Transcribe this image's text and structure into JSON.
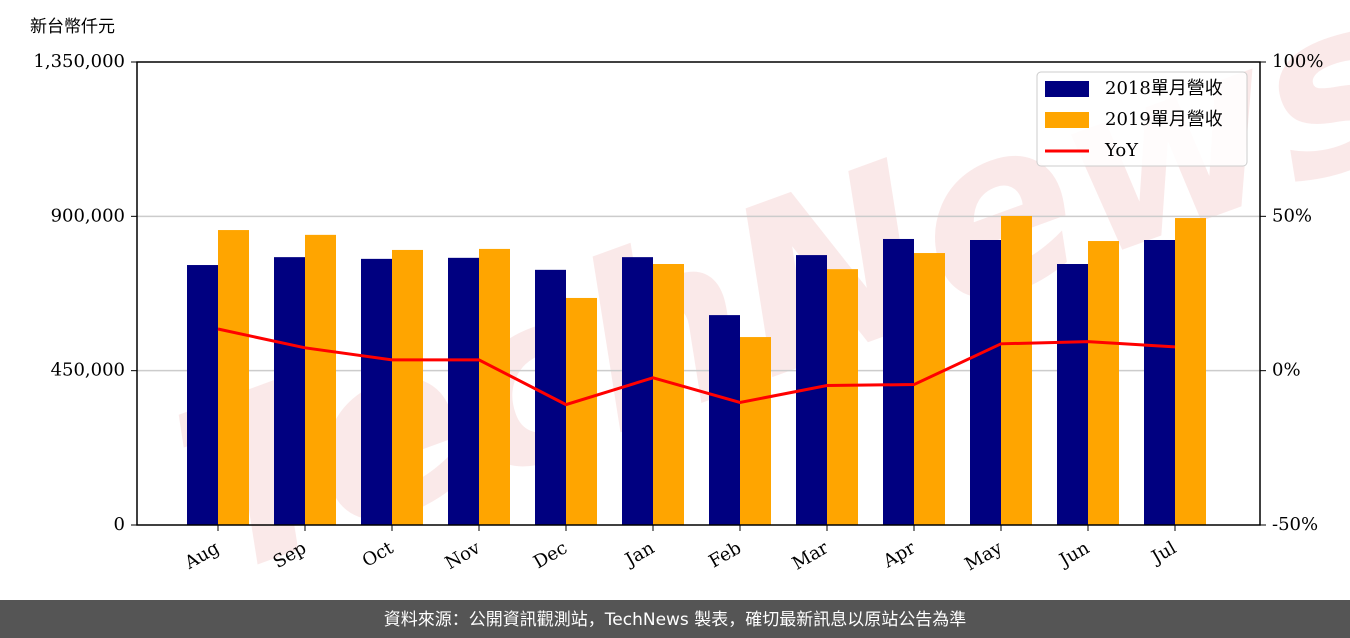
{
  "chart_data": {
    "type": "bar",
    "ylabel": "新台幣仟元",
    "watermark": "TechNews",
    "footer": "資料來源：公開資訊觀測站，TechNews 製表，確切最新訊息以原站公告為準",
    "categories": [
      "Aug",
      "Sep",
      "Oct",
      "Nov",
      "Dec",
      "Jan",
      "Feb",
      "Mar",
      "Apr",
      "May",
      "Jun",
      "Jul"
    ],
    "series": [
      {
        "name": "2018單月營收",
        "color": "#000080",
        "values": [
          758000,
          781000,
          776000,
          779000,
          744000,
          781000,
          612000,
          787000,
          834000,
          831000,
          761000,
          831000
        ]
      },
      {
        "name": "2019單月營收",
        "color": "#ffa500",
        "values": [
          860000,
          846000,
          802000,
          805000,
          662000,
          761000,
          548000,
          746000,
          793000,
          901000,
          828000,
          895000
        ]
      },
      {
        "name": "YoY",
        "type": "line",
        "axis": "y2",
        "color": "#ff0000",
        "values": [
          13.5,
          7.4,
          3.5,
          3.5,
          -11,
          -2.3,
          -10.3,
          -4.8,
          -4.5,
          8.7,
          9.4,
          7.7
        ]
      }
    ],
    "ylim": [
      0,
      1350000
    ],
    "yticks": [
      0,
      {
        "value": 450000,
        "label": "450,000"
      },
      {
        "value": 900000,
        "label": "900,000"
      },
      {
        "value": 1350000,
        "label": "1,350,000"
      }
    ],
    "y2lim": [
      -50,
      100
    ],
    "y2ticks": [
      {
        "value": -50,
        "label": "-50%"
      },
      {
        "value": 0,
        "label": "0%"
      },
      {
        "value": 50,
        "label": "50%"
      },
      {
        "value": 100,
        "label": "100%"
      }
    ],
    "grid": true,
    "legend": "upper right"
  }
}
